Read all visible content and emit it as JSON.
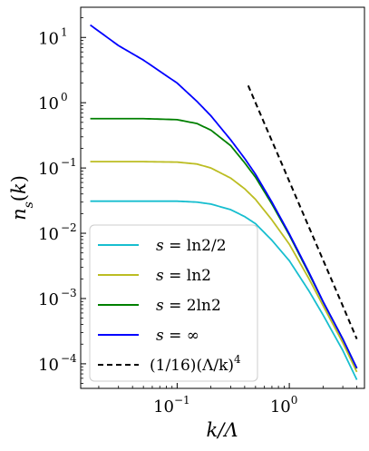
{
  "chart_data": {
    "type": "line",
    "xlabel": "k/Λ",
    "ylabel": "n_s(k)",
    "xscale": "log",
    "yscale": "log",
    "xlim": [
      0.0138,
      4.68
    ],
    "ylim": [
      4.2e-05,
      29
    ],
    "grid": false,
    "legend_placement": "lower-left",
    "x_ticks": [
      {
        "base": "10",
        "exp": "−1",
        "value": 0.1
      },
      {
        "base": "10",
        "exp": "0",
        "value": 1
      }
    ],
    "y_ticks": [
      {
        "base": "10",
        "exp": "1",
        "value": 10
      },
      {
        "base": "10",
        "exp": "0",
        "value": 1
      },
      {
        "base": "10",
        "exp": "−1",
        "value": 0.1
      },
      {
        "base": "10",
        "exp": "−2",
        "value": 0.01
      },
      {
        "base": "10",
        "exp": "−3",
        "value": 0.001
      },
      {
        "base": "10",
        "exp": "−4",
        "value": 0.0001
      }
    ],
    "series": [
      {
        "name": "s = ln2/2",
        "color": "#17becf",
        "style": "solid",
        "x": [
          0.0168,
          0.05,
          0.1,
          0.15,
          0.2,
          0.3,
          0.4,
          0.5,
          0.7,
          1.0,
          1.5,
          2.0,
          3.0,
          4.0
        ],
        "y": [
          0.031,
          0.031,
          0.031,
          0.03,
          0.028,
          0.023,
          0.018,
          0.014,
          0.0078,
          0.0038,
          0.0013,
          0.00056,
          0.00016,
          5.7e-05
        ]
      },
      {
        "name": "s = ln2",
        "color": "#bcbd22",
        "style": "solid",
        "x": [
          0.0168,
          0.05,
          0.1,
          0.15,
          0.2,
          0.3,
          0.4,
          0.5,
          0.7,
          1.0,
          1.5,
          2.0,
          3.0,
          4.0
        ],
        "y": [
          0.125,
          0.125,
          0.123,
          0.115,
          0.1,
          0.07,
          0.048,
          0.033,
          0.016,
          0.0068,
          0.002,
          0.00078,
          0.00021,
          7.5e-05
        ]
      },
      {
        "name": "s = 2ln2",
        "color": "#008000",
        "style": "solid",
        "x": [
          0.0168,
          0.05,
          0.1,
          0.15,
          0.2,
          0.3,
          0.4,
          0.5,
          0.7,
          1.0,
          1.5,
          2.0,
          3.0,
          4.0
        ],
        "y": [
          0.57,
          0.57,
          0.55,
          0.48,
          0.38,
          0.22,
          0.12,
          0.072,
          0.028,
          0.0094,
          0.0024,
          0.00089,
          0.00024,
          8.5e-05
        ]
      },
      {
        "name": "s = ∞",
        "color": "#0000ff",
        "style": "solid",
        "x": [
          0.0168,
          0.03,
          0.05,
          0.1,
          0.15,
          0.2,
          0.3,
          0.4,
          0.5,
          0.7,
          1.0,
          1.5,
          2.0,
          3.0,
          4.0
        ],
        "y": [
          15.5,
          7.5,
          4.5,
          2.0,
          1.05,
          0.63,
          0.27,
          0.14,
          0.08,
          0.03,
          0.0098,
          0.0025,
          0.0009,
          0.00024,
          8.6e-05
        ]
      },
      {
        "name": "(1/16)(Λ/k)^4",
        "color": "#000000",
        "style": "dashed",
        "x": [
          0.43,
          0.6,
          0.8,
          1.0,
          1.5,
          2.0,
          3.0,
          4.0
        ],
        "y": [
          1.83,
          0.48,
          0.153,
          0.0625,
          0.0123,
          0.0039,
          0.00077,
          0.00024
        ]
      }
    ],
    "legend": {
      "entries": [
        {
          "prefix": "s",
          "rhs": "= ln2/2"
        },
        {
          "prefix": "s",
          "rhs": "= ln2"
        },
        {
          "prefix": "s",
          "rhs": "= 2ln2"
        },
        {
          "prefix": "s",
          "rhs": "= ∞"
        },
        {
          "prefix": "",
          "rhs": "(1/16)(Λ/k)"
        }
      ],
      "last_exp": "4"
    }
  }
}
